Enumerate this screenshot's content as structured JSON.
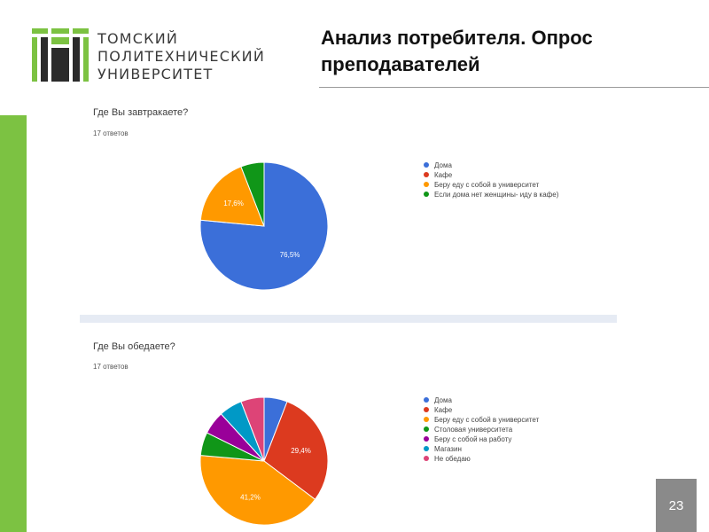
{
  "logo_text": "ТОМСКИЙ\nПОЛИТЕХНИЧЕСКИЙ\nУНИВЕРСИТЕТ",
  "slide": {
    "title": "Анализ потребителя. Опрос преподавателей",
    "page_number": "23"
  },
  "colors": {
    "brand_green": "#7cc242",
    "blue": "#3b6fd9",
    "red": "#dc3a1f",
    "orange": "#ff9900",
    "green": "#109618",
    "purple": "#990099",
    "teal": "#0099c6",
    "pink": "#dd4477"
  },
  "chart_data": [
    {
      "type": "pie",
      "title": "Где Вы завтракаете?",
      "subtitle": "17 ответов",
      "slices": [
        {
          "label": "Дома",
          "value": 76.5,
          "color": "#3b6fd9",
          "data_label": "76,5%"
        },
        {
          "label": "Кафе",
          "value": 0,
          "color": "#dc3a1f",
          "data_label": ""
        },
        {
          "label": "Беру еду с собой в университет",
          "value": 17.6,
          "color": "#ff9900",
          "data_label": "17,6%"
        },
        {
          "label": "Если дома нет женщины- иду в кафе)",
          "value": 5.9,
          "color": "#109618",
          "data_label": ""
        }
      ],
      "legend": "right"
    },
    {
      "type": "pie",
      "title": "Где Вы обедаете?",
      "subtitle": "17 ответов",
      "slices": [
        {
          "label": "Дома",
          "value": 5.9,
          "color": "#3b6fd9",
          "data_label": ""
        },
        {
          "label": "Кафе",
          "value": 29.4,
          "color": "#dc3a1f",
          "data_label": "29,4%"
        },
        {
          "label": "Беру еду с собой в университет",
          "value": 41.2,
          "color": "#ff9900",
          "data_label": "41,2%"
        },
        {
          "label": "Столовая университета",
          "value": 5.9,
          "color": "#109618",
          "data_label": ""
        },
        {
          "label": "Беру с собой на работу",
          "value": 5.9,
          "color": "#990099",
          "data_label": ""
        },
        {
          "label": "Магазин",
          "value": 5.9,
          "color": "#0099c6",
          "data_label": ""
        },
        {
          "label": "Не обедаю",
          "value": 5.9,
          "color": "#dd4477",
          "data_label": ""
        }
      ],
      "legend": "right"
    }
  ]
}
